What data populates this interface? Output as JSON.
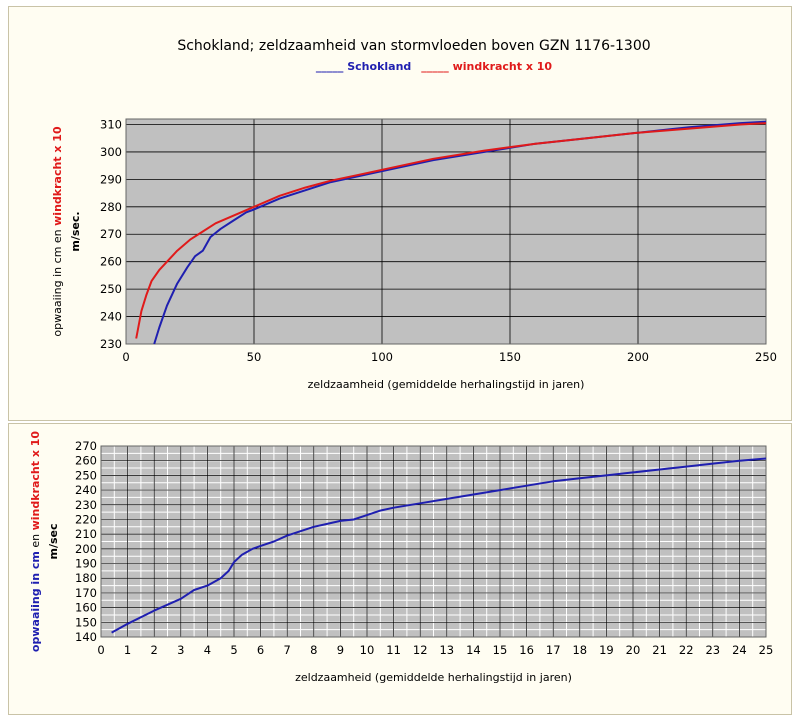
{
  "chart_data": [
    {
      "type": "line",
      "title": "Schokland; zeldzaamheid van stormvloeden boven GZN 1176-1300",
      "legend": [
        {
          "label": "_____ Schokland",
          "color": "#1f1fb0"
        },
        {
          "label": "_____ windkracht x 10",
          "color": "#e01a1a"
        }
      ],
      "ylabel_parts": [
        {
          "text": "opwaaiing in cm en ",
          "color": "#000000",
          "bold": false
        },
        {
          "text": "windkracht x 10",
          "color": "#e01a1a",
          "bold": true
        }
      ],
      "ylabel_line2": {
        "text": "m/sec.",
        "color": "#e01a1a"
      },
      "xlabel": "zeldzaamheid (gemiddelde herhalingstijd in jaren)",
      "xlim": [
        0,
        250
      ],
      "ylim": [
        230,
        312
      ],
      "xticks": [
        "0",
        "50",
        "100",
        "150",
        "200",
        "250"
      ],
      "yticks": [
        "230",
        "240",
        "250",
        "260",
        "270",
        "280",
        "290",
        "300",
        "310"
      ],
      "series": [
        {
          "name": "Schokland",
          "color": "#1f1fb0",
          "x": [
            11,
            13,
            16,
            20,
            24,
            27,
            30,
            33,
            37,
            42,
            47,
            50,
            60,
            70,
            80,
            90,
            100,
            120,
            140,
            160,
            180,
            200,
            220,
            240,
            250
          ],
          "y": [
            230,
            236,
            244,
            252,
            258,
            262,
            264,
            269,
            272,
            275,
            278,
            279,
            283,
            286,
            289,
            291,
            293,
            297,
            300,
            303,
            305,
            307,
            309,
            310.5,
            311
          ]
        },
        {
          "name": "windkracht x 10",
          "color": "#e01a1a",
          "x": [
            4,
            6,
            8,
            10,
            13,
            16,
            20,
            25,
            30,
            35,
            40,
            50,
            60,
            70,
            80,
            90,
            100,
            120,
            140,
            160,
            180,
            200,
            220,
            240,
            250
          ],
          "y": [
            232,
            242,
            248,
            253,
            257,
            260,
            264,
            268,
            271,
            274,
            276,
            280,
            284,
            287,
            289.5,
            291.5,
            293.5,
            297.5,
            300.5,
            303,
            305,
            307,
            308.5,
            310,
            310.5
          ]
        }
      ],
      "grid": true
    },
    {
      "type": "line",
      "ylabel_parts": [
        {
          "text": "opwaaiing in cm",
          "color": "#1f1fb0",
          "bold": true
        },
        {
          "text": " en ",
          "color": "#000000",
          "bold": false
        },
        {
          "text": "windkracht x 10",
          "color": "#e01a1a",
          "bold": true
        }
      ],
      "ylabel_line2": {
        "text": "m/sec",
        "color": "#e01a1a"
      },
      "xlabel": "zeldzaamheid (gemiddelde herhalingstijd in jaren)",
      "xlim": [
        0,
        25
      ],
      "ylim": [
        140,
        270
      ],
      "xticks": [
        "0",
        "1",
        "2",
        "3",
        "4",
        "5",
        "6",
        "7",
        "8",
        "9",
        "10",
        "11",
        "12",
        "13",
        "14",
        "15",
        "16",
        "17",
        "18",
        "19",
        "20",
        "21",
        "22",
        "23",
        "24",
        "25"
      ],
      "yticks": [
        "140",
        "150",
        "160",
        "170",
        "180",
        "190",
        "200",
        "210",
        "220",
        "230",
        "240",
        "250",
        "260",
        "270"
      ],
      "series": [
        {
          "name": "Schokland",
          "color": "#1f1fb0",
          "x": [
            0.4,
            1,
            2,
            3,
            3.5,
            4,
            4.5,
            4.8,
            5,
            5.3,
            5.7,
            6,
            6.5,
            7,
            7.5,
            8,
            8.5,
            9,
            9.5,
            10,
            10.5,
            11,
            12,
            13,
            14,
            15,
            16,
            17,
            18,
            19,
            20,
            21,
            22,
            23,
            24,
            25
          ],
          "y": [
            143,
            149,
            158,
            166,
            172,
            175,
            180,
            185,
            191,
            196,
            200,
            202,
            205,
            209,
            212,
            215,
            217,
            219,
            220,
            223,
            226,
            228,
            231,
            234,
            237,
            240,
            243,
            246,
            248,
            250,
            252,
            254,
            256,
            258,
            260,
            261.5
          ]
        }
      ],
      "grid": true
    }
  ]
}
